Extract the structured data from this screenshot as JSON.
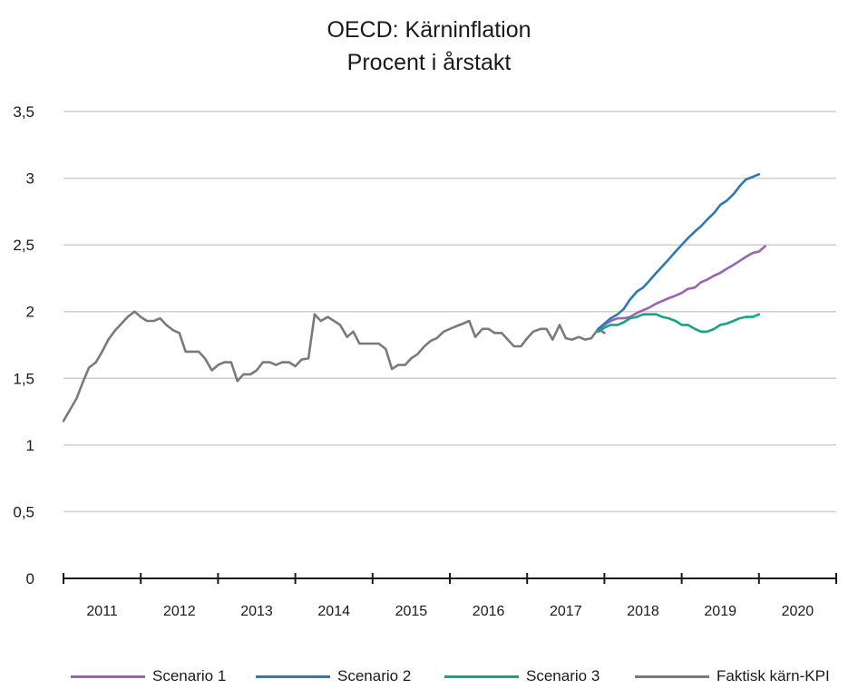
{
  "chart_data": {
    "type": "line",
    "title": "OECD: Kärninflation",
    "subtitle": "Procent i årstakt",
    "xlabel": "",
    "ylabel": "",
    "ylim": [
      0,
      3.5
    ],
    "yticks": [
      "0",
      "0,5",
      "1",
      "1,5",
      "2",
      "2,5",
      "3",
      "3,5"
    ],
    "ytick_values": [
      0,
      0.5,
      1,
      1.5,
      2,
      2.5,
      3,
      3.5
    ],
    "xlim": [
      2011,
      2021
    ],
    "x_tick_labels": [
      "2011",
      "2012",
      "2013",
      "2014",
      "2015",
      "2016",
      "2017",
      "2018",
      "2019",
      "2020"
    ],
    "grid": true,
    "legend_position": "bottom",
    "series": [
      {
        "name": "Scenario 1",
        "color": "#9a63b5",
        "points": [
          [
            2017.92,
            1.87
          ],
          [
            2018.0,
            1.9
          ],
          [
            2018.08,
            1.93
          ],
          [
            2018.17,
            1.95
          ],
          [
            2018.25,
            1.95
          ],
          [
            2018.33,
            1.96
          ],
          [
            2018.42,
            1.99
          ],
          [
            2018.5,
            2.01
          ],
          [
            2018.58,
            2.03
          ],
          [
            2018.67,
            2.06
          ],
          [
            2018.75,
            2.08
          ],
          [
            2018.83,
            2.1
          ],
          [
            2018.92,
            2.12
          ],
          [
            2019.0,
            2.14
          ],
          [
            2019.08,
            2.17
          ],
          [
            2019.17,
            2.18
          ],
          [
            2019.25,
            2.22
          ],
          [
            2019.33,
            2.24
          ],
          [
            2019.42,
            2.27
          ],
          [
            2019.5,
            2.29
          ],
          [
            2019.58,
            2.32
          ],
          [
            2019.67,
            2.35
          ],
          [
            2019.75,
            2.38
          ],
          [
            2019.83,
            2.41
          ],
          [
            2019.92,
            2.44
          ],
          [
            2020.0,
            2.45
          ],
          [
            2020.08,
            2.49
          ]
        ]
      },
      {
        "name": "Scenario 2",
        "color": "#2f78b6",
        "points": [
          [
            2017.92,
            1.87
          ],
          [
            2018.0,
            1.91
          ],
          [
            2018.08,
            1.95
          ],
          [
            2018.17,
            1.98
          ],
          [
            2018.25,
            2.02
          ],
          [
            2018.33,
            2.09
          ],
          [
            2018.42,
            2.15
          ],
          [
            2018.5,
            2.18
          ],
          [
            2018.58,
            2.23
          ],
          [
            2018.67,
            2.29
          ],
          [
            2018.75,
            2.34
          ],
          [
            2018.83,
            2.39
          ],
          [
            2018.92,
            2.45
          ],
          [
            2019.0,
            2.5
          ],
          [
            2019.08,
            2.55
          ],
          [
            2019.17,
            2.6
          ],
          [
            2019.25,
            2.64
          ],
          [
            2019.33,
            2.69
          ],
          [
            2019.42,
            2.74
          ],
          [
            2019.5,
            2.8
          ],
          [
            2019.58,
            2.83
          ],
          [
            2019.67,
            2.88
          ],
          [
            2019.75,
            2.94
          ],
          [
            2019.83,
            2.99
          ],
          [
            2019.92,
            3.01
          ],
          [
            2020.0,
            3.03
          ]
        ]
      },
      {
        "name": "Scenario 3",
        "color": "#14a77f",
        "points": [
          [
            2017.92,
            1.85
          ],
          [
            2018.0,
            1.88
          ],
          [
            2018.08,
            1.9
          ],
          [
            2018.17,
            1.9
          ],
          [
            2018.25,
            1.92
          ],
          [
            2018.33,
            1.95
          ],
          [
            2018.42,
            1.96
          ],
          [
            2018.5,
            1.98
          ],
          [
            2018.58,
            1.98
          ],
          [
            2018.67,
            1.98
          ],
          [
            2018.75,
            1.96
          ],
          [
            2018.83,
            1.95
          ],
          [
            2018.92,
            1.93
          ],
          [
            2019.0,
            1.9
          ],
          [
            2019.08,
            1.9
          ],
          [
            2019.17,
            1.87
          ],
          [
            2019.25,
            1.85
          ],
          [
            2019.33,
            1.85
          ],
          [
            2019.42,
            1.87
          ],
          [
            2019.5,
            1.9
          ],
          [
            2019.58,
            1.91
          ],
          [
            2019.67,
            1.93
          ],
          [
            2019.75,
            1.95
          ],
          [
            2019.83,
            1.96
          ],
          [
            2019.92,
            1.96
          ],
          [
            2020.0,
            1.98
          ]
        ]
      },
      {
        "name": "Faktisk kärn-KPI",
        "color": "#7a7a7a",
        "points": [
          [
            2011.0,
            1.18
          ],
          [
            2011.08,
            1.26
          ],
          [
            2011.17,
            1.35
          ],
          [
            2011.25,
            1.47
          ],
          [
            2011.33,
            1.58
          ],
          [
            2011.42,
            1.62
          ],
          [
            2011.5,
            1.7
          ],
          [
            2011.58,
            1.79
          ],
          [
            2011.67,
            1.86
          ],
          [
            2011.75,
            1.91
          ],
          [
            2011.83,
            1.96
          ],
          [
            2011.92,
            2.0
          ],
          [
            2012.0,
            1.96
          ],
          [
            2012.08,
            1.93
          ],
          [
            2012.17,
            1.93
          ],
          [
            2012.25,
            1.95
          ],
          [
            2012.33,
            1.9
          ],
          [
            2012.42,
            1.86
          ],
          [
            2012.5,
            1.84
          ],
          [
            2012.58,
            1.7
          ],
          [
            2012.67,
            1.7
          ],
          [
            2012.75,
            1.7
          ],
          [
            2012.83,
            1.65
          ],
          [
            2012.92,
            1.56
          ],
          [
            2013.0,
            1.6
          ],
          [
            2013.08,
            1.62
          ],
          [
            2013.17,
            1.62
          ],
          [
            2013.25,
            1.48
          ],
          [
            2013.33,
            1.53
          ],
          [
            2013.42,
            1.53
          ],
          [
            2013.5,
            1.56
          ],
          [
            2013.58,
            1.62
          ],
          [
            2013.67,
            1.62
          ],
          [
            2013.75,
            1.6
          ],
          [
            2013.83,
            1.62
          ],
          [
            2013.92,
            1.62
          ],
          [
            2014.0,
            1.59
          ],
          [
            2014.08,
            1.64
          ],
          [
            2014.17,
            1.65
          ],
          [
            2014.25,
            1.98
          ],
          [
            2014.33,
            1.93
          ],
          [
            2014.42,
            1.96
          ],
          [
            2014.5,
            1.93
          ],
          [
            2014.58,
            1.9
          ],
          [
            2014.67,
            1.81
          ],
          [
            2014.75,
            1.85
          ],
          [
            2014.83,
            1.76
          ],
          [
            2014.92,
            1.76
          ],
          [
            2015.0,
            1.76
          ],
          [
            2015.08,
            1.76
          ],
          [
            2015.17,
            1.72
          ],
          [
            2015.25,
            1.57
          ],
          [
            2015.33,
            1.6
          ],
          [
            2015.42,
            1.6
          ],
          [
            2015.5,
            1.65
          ],
          [
            2015.58,
            1.68
          ],
          [
            2015.67,
            1.74
          ],
          [
            2015.75,
            1.78
          ],
          [
            2015.83,
            1.8
          ],
          [
            2015.92,
            1.85
          ],
          [
            2016.0,
            1.87
          ],
          [
            2016.08,
            1.89
          ],
          [
            2016.17,
            1.91
          ],
          [
            2016.25,
            1.93
          ],
          [
            2016.33,
            1.81
          ],
          [
            2016.42,
            1.87
          ],
          [
            2016.5,
            1.87
          ],
          [
            2016.58,
            1.84
          ],
          [
            2016.67,
            1.84
          ],
          [
            2016.75,
            1.79
          ],
          [
            2016.83,
            1.74
          ],
          [
            2016.92,
            1.74
          ],
          [
            2017.0,
            1.8
          ],
          [
            2017.08,
            1.85
          ],
          [
            2017.17,
            1.87
          ],
          [
            2017.25,
            1.87
          ],
          [
            2017.33,
            1.79
          ],
          [
            2017.42,
            1.9
          ],
          [
            2017.5,
            1.8
          ],
          [
            2017.58,
            1.79
          ],
          [
            2017.67,
            1.81
          ],
          [
            2017.75,
            1.79
          ],
          [
            2017.83,
            1.8
          ],
          [
            2017.92,
            1.87
          ],
          [
            2018.0,
            1.84
          ]
        ]
      }
    ]
  }
}
